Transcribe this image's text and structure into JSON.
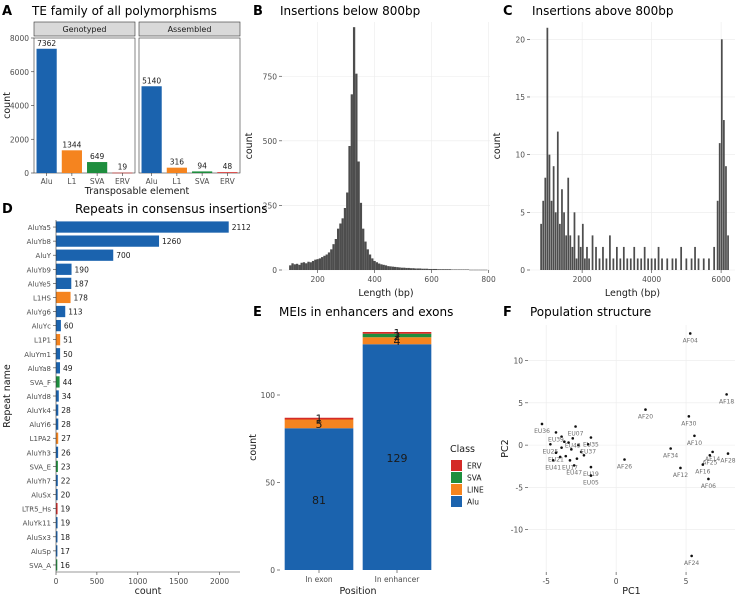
{
  "colors": {
    "alu": "#1B63AE",
    "line": "#F5841F",
    "sva": "#1E8E3E",
    "erv": "#D42A27",
    "hist": "#4D4D4D",
    "strip": "#D9D9D9",
    "panel_bg": "#ffffff",
    "grid": "#EBEBEB"
  },
  "chart_data": [
    {
      "id": "A",
      "type": "bar",
      "title": "TE family of all polymorphisms",
      "xlabel": "Transposable element",
      "ylabel": "count",
      "ylim": [
        0,
        8000
      ],
      "yticks": [
        0,
        2000,
        4000,
        6000,
        8000
      ],
      "facets": [
        {
          "strip": "Genotyped",
          "categories": [
            "Alu",
            "L1",
            "SVA",
            "ERV"
          ],
          "values": [
            7362,
            1344,
            649,
            19
          ],
          "labels": [
            "7362",
            "1344",
            "649",
            "19"
          ]
        },
        {
          "strip": "Assembled",
          "categories": [
            "Alu",
            "L1",
            "SVA",
            "ERV"
          ],
          "values": [
            5140,
            316,
            94,
            48
          ],
          "labels": [
            "5140",
            "316",
            "94",
            "48"
          ]
        }
      ]
    },
    {
      "id": "B",
      "type": "bar",
      "title": "Insertions below 800bp",
      "xlabel": "Length (bp)",
      "ylabel": "count",
      "xlim": [
        75,
        805
      ],
      "ylim": [
        0,
        960
      ],
      "xticks": [
        200,
        400,
        600,
        800
      ],
      "yticks": [
        0,
        250,
        500,
        750
      ],
      "x": [
        104,
        112,
        120,
        128,
        136,
        144,
        152,
        160,
        168,
        176,
        184,
        192,
        200,
        208,
        216,
        224,
        232,
        240,
        248,
        256,
        264,
        272,
        280,
        288,
        296,
        304,
        312,
        320,
        328,
        336,
        344,
        352,
        360,
        368,
        376,
        384,
        392,
        400,
        408,
        416,
        424,
        432,
        440,
        448,
        456,
        464,
        472,
        480,
        488,
        496,
        504,
        512,
        520,
        528,
        536,
        544,
        552,
        560,
        568,
        576,
        584,
        592,
        600,
        608,
        616,
        624,
        632,
        640,
        648,
        656,
        664,
        672,
        680,
        688,
        696,
        704,
        712,
        720,
        728,
        736,
        744,
        752,
        760,
        768,
        776,
        784,
        792
      ],
      "values": [
        18,
        26,
        22,
        24,
        20,
        28,
        30,
        26,
        32,
        30,
        35,
        40,
        42,
        45,
        50,
        55,
        60,
        68,
        80,
        100,
        120,
        160,
        180,
        200,
        240,
        300,
        480,
        680,
        940,
        760,
        420,
        260,
        160,
        110,
        80,
        60,
        45,
        35,
        30,
        25,
        22,
        20,
        18,
        15,
        14,
        13,
        12,
        11,
        10,
        9,
        9,
        8,
        8,
        7,
        7,
        6,
        6,
        6,
        5,
        5,
        5,
        4,
        4,
        4,
        4,
        3,
        3,
        3,
        3,
        3,
        3,
        2,
        2,
        2,
        2,
        2,
        2,
        2,
        2,
        1,
        1,
        1,
        1,
        1,
        1,
        1,
        1
      ]
    },
    {
      "id": "C",
      "type": "bar",
      "title": "Insertions above 800bp",
      "xlabel": "Length (bp)",
      "ylabel": "count",
      "xlim": [
        500,
        6400
      ],
      "ylim": [
        0,
        21.5
      ],
      "xticks": [
        2000,
        4000,
        6000
      ],
      "yticks": [
        0,
        5,
        10,
        15,
        20
      ],
      "x": [
        820,
        880,
        940,
        1000,
        1060,
        1120,
        1180,
        1240,
        1300,
        1360,
        1420,
        1480,
        1540,
        1600,
        1660,
        1720,
        1780,
        1840,
        1900,
        1960,
        2020,
        2080,
        2140,
        2200,
        2300,
        2400,
        2500,
        2600,
        2700,
        2800,
        2900,
        3000,
        3100,
        3200,
        3300,
        3400,
        3500,
        3600,
        3700,
        3800,
        3900,
        4000,
        4100,
        4200,
        4300,
        4450,
        4600,
        4700,
        4850,
        5000,
        5150,
        5250,
        5350,
        5500,
        5650,
        5800,
        5900,
        5960,
        6020,
        6080,
        6140,
        6200
      ],
      "values": [
        4,
        6,
        8,
        21,
        10,
        6,
        9,
        5,
        12,
        4,
        7,
        5,
        3,
        8,
        3,
        2,
        5,
        1,
        3,
        2,
        4,
        1,
        2,
        1,
        3,
        2,
        1,
        2,
        1,
        3,
        1,
        2,
        1,
        2,
        1,
        1,
        2,
        1,
        1,
        2,
        1,
        1,
        1,
        2,
        1,
        1,
        1,
        1,
        2,
        1,
        1,
        2,
        1,
        1,
        1,
        2,
        6,
        11,
        20,
        13,
        9,
        3
      ]
    },
    {
      "id": "D",
      "type": "bar",
      "orientation": "horizontal",
      "title": "Repeats in consensus insertions",
      "xlabel": "count",
      "ylabel": "Repeat name",
      "xlim": [
        0,
        2250
      ],
      "xticks": [
        0,
        500,
        1000,
        1500,
        2000
      ],
      "categories": [
        "AluYa5",
        "AluYb8",
        "AluY",
        "AluYb9",
        "AluYe5",
        "L1HS",
        "AluYg6",
        "AluYc",
        "L1P1",
        "AluYm1",
        "AluYa8",
        "SVA_F",
        "AluYd8",
        "AluYk4",
        "AluYi6",
        "L1PA2",
        "AluYh3",
        "SVA_E",
        "AluYh7",
        "AluSx",
        "LTR5_Hs",
        "AluYk11",
        "AluSx3",
        "AluSp",
        "SVA_A"
      ],
      "values": [
        2112,
        1260,
        700,
        190,
        187,
        178,
        113,
        60,
        51,
        50,
        49,
        44,
        34,
        28,
        28,
        27,
        26,
        23,
        22,
        20,
        19,
        19,
        18,
        17,
        16
      ],
      "labels": [
        "2112",
        "1260",
        "700",
        "190",
        "187",
        "178",
        "113",
        "60",
        "51",
        "50",
        "49",
        "44",
        "34",
        "28",
        "28",
        "27",
        "26",
        "23",
        "22",
        "20",
        "19",
        "19",
        "18",
        "17",
        "16"
      ],
      "classes": [
        "alu",
        "alu",
        "alu",
        "alu",
        "alu",
        "line",
        "alu",
        "alu",
        "line",
        "alu",
        "alu",
        "sva",
        "alu",
        "alu",
        "alu",
        "line",
        "alu",
        "sva",
        "alu",
        "alu",
        "erv",
        "alu",
        "alu",
        "alu",
        "sva"
      ]
    },
    {
      "id": "E",
      "type": "bar",
      "stacked": true,
      "title": "MEIs in enhancers and exons",
      "xlabel": "Position",
      "ylabel": "count",
      "ylim": [
        0,
        140
      ],
      "yticks": [
        0,
        50,
        100
      ],
      "categories": [
        "In exon",
        "In enhancer"
      ],
      "series": [
        {
          "name": "Alu",
          "class": "alu",
          "values": [
            81,
            129
          ]
        },
        {
          "name": "LINE",
          "class": "line",
          "values": [
            5,
            4
          ]
        },
        {
          "name": "SVA",
          "class": "sva",
          "values": [
            0,
            2
          ]
        },
        {
          "name": "ERV",
          "class": "erv",
          "values": [
            1,
            1
          ]
        }
      ],
      "segment_labels": [
        {
          "text": "81",
          "x": 0,
          "y": 40
        },
        {
          "text": "5",
          "x": 0,
          "y": 83.5
        },
        {
          "text": "1",
          "x": 0,
          "y": 86.6
        },
        {
          "text": "129",
          "x": 1,
          "y": 64
        },
        {
          "text": "4",
          "x": 1,
          "y": 130.8
        },
        {
          "text": "2",
          "x": 1,
          "y": 133.8
        },
        {
          "text": "1",
          "x": 1,
          "y": 135.3
        }
      ],
      "legend_title": "Class",
      "legend": [
        {
          "label": "ERV",
          "class": "erv"
        },
        {
          "label": "SVA",
          "class": "sva"
        },
        {
          "label": "LINE",
          "class": "line"
        },
        {
          "label": "Alu",
          "class": "alu"
        }
      ]
    },
    {
      "id": "F",
      "type": "scatter",
      "title": "Population structure",
      "xlabel": "PC1",
      "ylabel": "PC2",
      "xlim": [
        -6.3,
        8.5
      ],
      "ylim": [
        -15,
        14.2
      ],
      "xticks": [
        -5,
        0,
        5
      ],
      "yticks": [
        -10,
        -5,
        0,
        5,
        10
      ],
      "points": [
        {
          "label": "AF04",
          "x": 5.3,
          "y": 13.2
        },
        {
          "label": "AF18",
          "x": 7.9,
          "y": 6.0
        },
        {
          "label": "AF20",
          "x": 2.1,
          "y": 4.2
        },
        {
          "label": "AF30",
          "x": 5.2,
          "y": 3.4
        },
        {
          "label": "AF10",
          "x": 5.6,
          "y": 1.1
        },
        {
          "label": "AF14",
          "x": 6.9,
          "y": -0.8
        },
        {
          "label": "AF34",
          "x": 3.9,
          "y": -0.4
        },
        {
          "label": "AF28",
          "x": 8.0,
          "y": -1.0
        },
        {
          "label": "AF25",
          "x": 6.7,
          "y": -1.2
        },
        {
          "label": "AF26",
          "x": 0.6,
          "y": -1.7
        },
        {
          "label": "AF16",
          "x": 6.2,
          "y": -2.3
        },
        {
          "label": "AF12",
          "x": 4.6,
          "y": -2.7
        },
        {
          "label": "AF06",
          "x": 6.6,
          "y": -4.0
        },
        {
          "label": "AF24",
          "x": 5.4,
          "y": -13.1
        },
        {
          "label": "EU36",
          "x": -5.3,
          "y": 2.5
        },
        {
          "label": "EU39",
          "x": -4.3,
          "y": 1.5
        },
        {
          "label": "EU07",
          "x": -2.9,
          "y": 2.2
        },
        {
          "label": "EU43",
          "x": -3.1,
          "y": 0.8
        },
        {
          "label": "EU35",
          "x": -1.8,
          "y": 0.9
        },
        {
          "label": "EU25",
          "x": -4.7,
          "y": 0.1
        },
        {
          "label": "EU37",
          "x": -2.0,
          "y": 0.1
        },
        {
          "label": "EU21",
          "x": -4.3,
          "y": -0.9
        },
        {
          "label": "EU41",
          "x": -4.5,
          "y": -1.8
        },
        {
          "label": "EU17",
          "x": -3.3,
          "y": -1.8
        },
        {
          "label": "EU47",
          "x": -3.0,
          "y": -2.4
        },
        {
          "label": "EU19",
          "x": -1.8,
          "y": -2.6
        },
        {
          "label": "EU05",
          "x": -1.8,
          "y": -3.6
        }
      ],
      "extra_points": [
        {
          "x": -3.7,
          "y": 0.4
        },
        {
          "x": -3.4,
          "y": 0.3
        },
        {
          "x": -2.7,
          "y": 0.0
        },
        {
          "x": -3.9,
          "y": -0.3
        },
        {
          "x": -3.2,
          "y": -0.5
        },
        {
          "x": -2.5,
          "y": -0.8
        },
        {
          "x": -3.6,
          "y": -1.3
        },
        {
          "x": -2.8,
          "y": -1.6
        },
        {
          "x": -3.9,
          "y": 1.0
        },
        {
          "x": -2.3,
          "y": -1.2
        },
        {
          "x": -4.0,
          "y": -1.4
        }
      ]
    }
  ]
}
